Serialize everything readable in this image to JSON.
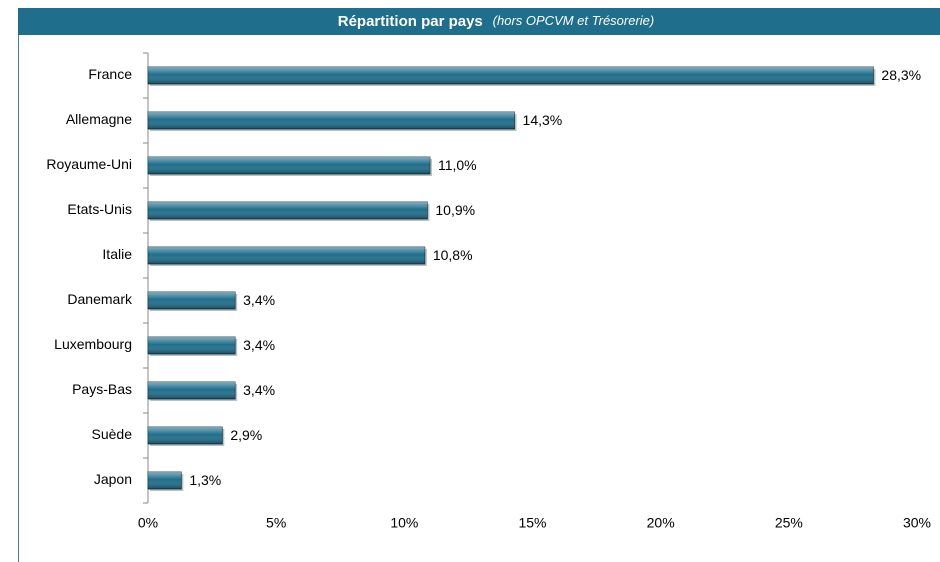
{
  "chart_data": {
    "type": "hbar",
    "title": "Répartition par pays",
    "subtitle": "(hors OPCVM et Trésorerie)",
    "categories": [
      "France",
      "Allemagne",
      "Royaume-Uni",
      "Etats-Unis",
      "Italie",
      "Danemark",
      "Luxembourg",
      "Pays-Bas",
      "Suède",
      "Japon"
    ],
    "values": [
      28.3,
      14.3,
      11.0,
      10.9,
      10.8,
      3.4,
      3.4,
      3.4,
      2.9,
      1.3
    ],
    "value_labels": [
      "28,3%",
      "14,3%",
      "11,0%",
      "10,9%",
      "10,8%",
      "3,4%",
      "3,4%",
      "3,4%",
      "2,9%",
      "1,3%"
    ],
    "color": "#1f6e8c",
    "xlim": [
      0,
      30
    ],
    "xticks": [
      {
        "value": 0,
        "label": "0%"
      },
      {
        "value": 5,
        "label": "5%"
      },
      {
        "value": 10,
        "label": "10%"
      },
      {
        "value": 15,
        "label": "15%"
      },
      {
        "value": 20,
        "label": "20%"
      },
      {
        "value": 25,
        "label": "25%"
      },
      {
        "value": 30,
        "label": "30%"
      }
    ],
    "grid": false
  }
}
